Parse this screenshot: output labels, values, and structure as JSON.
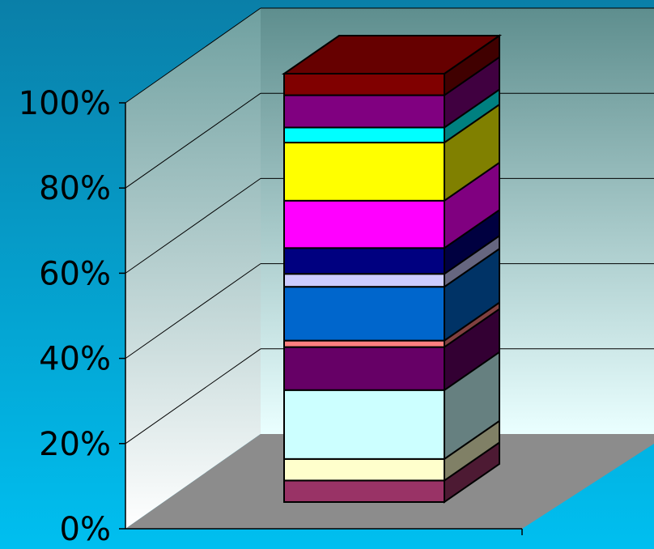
{
  "chart_data": {
    "type": "bar",
    "stacked": true,
    "percent_stacked": true,
    "three_d": true,
    "title": "",
    "xlabel": "",
    "ylabel": "",
    "ylim": [
      0,
      100
    ],
    "y_ticks": [
      "0%",
      "20%",
      "40%",
      "60%",
      "80%",
      "100%"
    ],
    "y_tick_values": [
      0,
      20,
      40,
      60,
      80,
      100
    ],
    "grid": true,
    "legend": "none",
    "categories": [
      ""
    ],
    "series": [
      {
        "values": [
          5
        ],
        "color": "#993366"
      },
      {
        "values": [
          5
        ],
        "color": "#FFFFCC"
      },
      {
        "values": [
          16
        ],
        "color": "#CCFFFF"
      },
      {
        "values": [
          10
        ],
        "color": "#660066"
      },
      {
        "values": [
          1.5
        ],
        "color": "#FF8080"
      },
      {
        "values": [
          12.5
        ],
        "color": "#0066CC"
      },
      {
        "values": [
          3
        ],
        "color": "#CCCCFF"
      },
      {
        "values": [
          6
        ],
        "color": "#000080"
      },
      {
        "values": [
          11
        ],
        "color": "#FF00FF"
      },
      {
        "values": [
          13.5
        ],
        "color": "#FFFF00"
      },
      {
        "values": [
          3.5
        ],
        "color": "#00FFFF"
      },
      {
        "values": [
          7.5
        ],
        "color": "#800080"
      },
      {
        "values": [
          5
        ],
        "color": "#800000"
      }
    ]
  },
  "style": {
    "background_top": "#0A7FA8",
    "background_bottom": "#00BFF0",
    "wall_back_top": "#5E8E8E",
    "wall_back_bottom": "#EAFFFF",
    "wall_left_top": "#6FA0A0",
    "wall_left_bottom": "#FFFFFF",
    "floor_color": "#8C8C8C",
    "gridline_color": "#000000",
    "bar_outline": "#000000"
  }
}
